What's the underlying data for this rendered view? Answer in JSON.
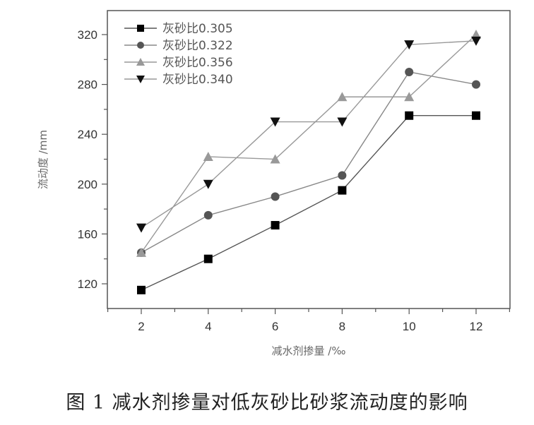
{
  "caption": "图 1 减水剂掺量对低灰砂比砂浆流动度的影响",
  "chart_data": {
    "type": "line",
    "title": "",
    "xlabel": "减水剂掺量 /‰",
    "ylabel": "流动度 /mm",
    "x": [
      2,
      4,
      6,
      8,
      10,
      12
    ],
    "xticks": [
      2,
      4,
      6,
      8,
      10,
      12
    ],
    "yticks": [
      120,
      160,
      200,
      240,
      280,
      320
    ],
    "xlim": [
      1,
      13
    ],
    "ylim": [
      100,
      336
    ],
    "grid": false,
    "legend_position": "upper left",
    "series": [
      {
        "name": "灰砂比0.305",
        "marker": "square",
        "color": "#000000",
        "line_color": "#555555",
        "values": [
          115,
          140,
          167,
          195,
          255,
          255
        ]
      },
      {
        "name": "灰砂比0.322",
        "marker": "circle",
        "color": "#555555",
        "line_color": "#888888",
        "values": [
          145,
          175,
          190,
          207,
          290,
          280
        ]
      },
      {
        "name": "灰砂比0.356",
        "marker": "triangle-up",
        "color": "#999999",
        "line_color": "#999999",
        "values": [
          145,
          222,
          220,
          270,
          270,
          320
        ]
      },
      {
        "name": "灰砂比0.340",
        "marker": "triangle-down",
        "color": "#111111",
        "line_color": "#999999",
        "values": [
          165,
          200,
          250,
          250,
          312,
          315
        ]
      }
    ]
  }
}
